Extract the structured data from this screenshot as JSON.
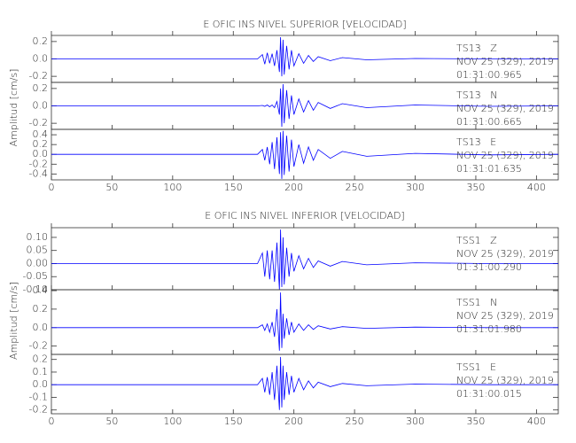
{
  "chart_data": [
    {
      "type": "line",
      "title": "E OFIC INS NIVEL SUPERIOR [VELOCIDAD]",
      "ylabel": "Amplitud [cm/s]",
      "color": "#0000ff",
      "xlim": [
        0,
        418
      ],
      "xticks": [
        0,
        50,
        100,
        150,
        200,
        250,
        300,
        350,
        400
      ],
      "x": [
        0,
        100,
        170,
        174,
        176,
        178,
        180,
        182,
        184,
        186,
        188,
        189,
        190,
        191,
        192,
        194,
        196,
        198,
        200,
        204,
        208,
        212,
        216,
        220,
        230,
        240,
        260,
        300,
        360,
        418
      ],
      "panels": [
        {
          "station": "TS13   Z",
          "date": "NOV 25 (329), 2019",
          "time": "01:31:00.965",
          "ylim": [
            -0.27,
            0.27
          ],
          "yticks": [
            {
              "value": 0.2,
              "label": "0.2"
            },
            {
              "value": 0,
              "label": "0.0"
            },
            {
              "value": -0.2,
              "label": "-0.2"
            }
          ],
          "values": [
            0,
            0,
            0,
            0.05,
            -0.06,
            0.07,
            -0.05,
            0.06,
            -0.08,
            0.1,
            -0.15,
            0.25,
            -0.2,
            0.22,
            -0.18,
            0.15,
            -0.12,
            0.1,
            -0.08,
            0.06,
            -0.05,
            0.04,
            -0.03,
            0.025,
            -0.02,
            0.015,
            -0.01,
            0.005,
            0,
            0
          ]
        },
        {
          "station": "TS13   N",
          "date": "NOV 25 (329), 2019",
          "time": "01:31:00.665",
          "ylim": [
            -0.27,
            0.27
          ],
          "yticks": [
            {
              "value": 0.2,
              "label": "0.2"
            },
            {
              "value": 0,
              "label": "0.0"
            },
            {
              "value": -0.2,
              "label": "-0.2"
            }
          ],
          "values": [
            0,
            0,
            0,
            0.005,
            -0.005,
            0.01,
            -0.01,
            0.01,
            -0.02,
            0.05,
            -0.1,
            0.2,
            -0.24,
            0.25,
            -0.2,
            0.18,
            -0.15,
            0.12,
            -0.1,
            0.08,
            -0.07,
            0.06,
            -0.05,
            0.04,
            -0.03,
            0.025,
            -0.02,
            0.01,
            -0.005,
            0
          ]
        },
        {
          "station": "TS13   E",
          "date": "NOV 25 (329), 2019",
          "time": "01:31:01.635",
          "ylim": [
            -0.52,
            0.51
          ],
          "yticks": [
            {
              "value": 0.4,
              "label": "0.4"
            },
            {
              "value": 0.2,
              "label": "0.2"
            },
            {
              "value": 0,
              "label": "0.0"
            },
            {
              "value": -0.2,
              "label": "-0.2"
            },
            {
              "value": -0.4,
              "label": "-0.4"
            }
          ],
          "values": [
            0,
            0,
            0,
            0.1,
            -0.12,
            0.15,
            -0.2,
            0.25,
            -0.3,
            0.35,
            -0.4,
            0.45,
            -0.5,
            0.48,
            -0.42,
            0.38,
            -0.35,
            0.3,
            -0.25,
            0.2,
            -0.18,
            0.15,
            -0.12,
            0.1,
            -0.08,
            0.06,
            -0.04,
            0.02,
            -0.01,
            0
          ]
        }
      ]
    },
    {
      "type": "line",
      "title": "E OFIC INS NIVEL INFERIOR [VELOCIDAD]",
      "ylabel": "Amplitud [cm/s]",
      "color": "#0000ff",
      "xlim": [
        0,
        418
      ],
      "xticks": [
        0,
        50,
        100,
        150,
        200,
        250,
        300,
        350,
        400
      ],
      "x": [
        0,
        100,
        170,
        174,
        176,
        178,
        180,
        182,
        184,
        186,
        188,
        189,
        190,
        191,
        192,
        194,
        196,
        198,
        200,
        204,
        208,
        212,
        216,
        220,
        230,
        240,
        260,
        300,
        360,
        418
      ],
      "panels": [
        {
          "station": "TSS1   Z",
          "date": "NOV 25 (329), 2019",
          "time": "01:31:00.290",
          "ylim": [
            -0.1,
            0.137
          ],
          "yticks": [
            {
              "value": 0.1,
              "label": "0.10"
            },
            {
              "value": 0.05,
              "label": "0.05"
            },
            {
              "value": 0,
              "label": "0.00"
            },
            {
              "value": -0.05,
              "label": "-0.05"
            },
            {
              "value": -0.1,
              "label": "-0.10"
            }
          ],
          "values": [
            0,
            0,
            0,
            0.04,
            -0.05,
            0.05,
            -0.06,
            0.05,
            -0.07,
            0.08,
            -0.1,
            0.13,
            -0.09,
            0.1,
            -0.08,
            0.06,
            -0.05,
            0.04,
            -0.03,
            0.03,
            -0.02,
            0.02,
            -0.015,
            0.01,
            -0.01,
            0.008,
            -0.005,
            0.003,
            0,
            0
          ]
        },
        {
          "station": "TSS1   N",
          "date": "NOV 25 (329), 2019",
          "time": "01:31:01.980",
          "ylim": [
            -0.29,
            0.41
          ],
          "yticks": [
            {
              "value": 0.4,
              "label": "0.4"
            },
            {
              "value": 0.2,
              "label": "0.2"
            },
            {
              "value": 0,
              "label": "0.0"
            },
            {
              "value": -0.2,
              "label": "-0.2"
            }
          ],
          "values": [
            0,
            0,
            0,
            0.03,
            -0.03,
            0.04,
            -0.05,
            0.06,
            -0.1,
            0.2,
            -0.25,
            0.38,
            -0.22,
            0.15,
            -0.12,
            0.1,
            -0.08,
            0.06,
            -0.05,
            0.04,
            -0.03,
            0.03,
            -0.02,
            0.02,
            -0.015,
            0.01,
            -0.008,
            0.005,
            0,
            0
          ]
        },
        {
          "station": "TSS1   E",
          "date": "NOV 25 (329), 2019",
          "time": "01:31:00.015",
          "ylim": [
            -0.23,
            0.24
          ],
          "yticks": [
            {
              "value": 0.2,
              "label": "0.2"
            },
            {
              "value": 0.1,
              "label": "0.1"
            },
            {
              "value": 0,
              "label": "0.0"
            },
            {
              "value": -0.1,
              "label": "-0.1"
            },
            {
              "value": -0.2,
              "label": "-0.2"
            }
          ],
          "values": [
            0,
            0,
            0,
            0.05,
            -0.06,
            0.06,
            -0.08,
            0.1,
            -0.12,
            0.15,
            -0.2,
            0.22,
            -0.18,
            0.15,
            -0.12,
            0.1,
            -0.08,
            0.07,
            -0.06,
            0.05,
            -0.04,
            0.03,
            -0.025,
            0.02,
            -0.015,
            0.01,
            -0.008,
            0.005,
            0,
            0
          ]
        }
      ]
    }
  ]
}
